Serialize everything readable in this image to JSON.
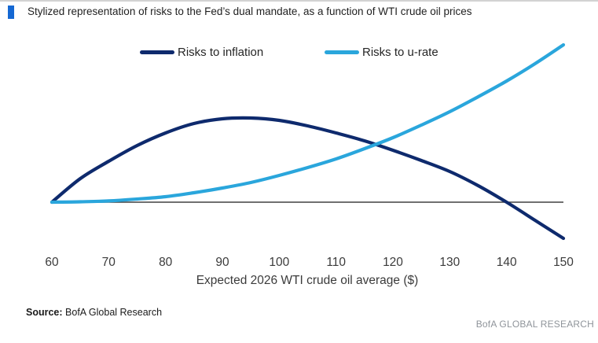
{
  "header": {
    "title": "Stylized representation of risks to the Fed’s dual mandate, as a function of WTI crude oil prices",
    "accent_color": "#1568d3"
  },
  "legend": [
    {
      "label": "Risks to inflation",
      "color": "#0e2a6d"
    },
    {
      "label": "Risks to u-rate",
      "color": "#2aa6dc"
    }
  ],
  "source": {
    "label": "Source:",
    "text": "BofA Global Research"
  },
  "brand": "BofA GLOBAL RESEARCH",
  "chart_data": {
    "type": "line",
    "title": "Stylized representation of risks to the Fed’s dual mandate, as a function of WTI crude oil prices",
    "xlabel": "Expected 2026 WTI crude oil average ($)",
    "ylabel": "",
    "xlim": [
      60,
      150
    ],
    "ylim": [
      -0.6,
      2.1
    ],
    "x_ticks": [
      60,
      70,
      80,
      90,
      100,
      110,
      120,
      130,
      140,
      150
    ],
    "grid": false,
    "zero_line": true,
    "zero_line_color": "#404040",
    "legend_position": "top",
    "x": [
      60,
      65,
      70,
      75,
      80,
      85,
      90,
      95,
      100,
      105,
      110,
      115,
      120,
      125,
      130,
      135,
      140,
      145,
      150
    ],
    "series": [
      {
        "name": "Risks to inflation",
        "color": "#0e2a6d",
        "values": [
          0,
          0.3,
          0.52,
          0.72,
          0.88,
          1.0,
          1.06,
          1.07,
          1.04,
          0.97,
          0.88,
          0.78,
          0.66,
          0.53,
          0.39,
          0.21,
          0.0,
          -0.23,
          -0.46
        ]
      },
      {
        "name": "Risks to u-rate",
        "color": "#2aa6dc",
        "values": [
          0,
          0.005,
          0.016,
          0.04,
          0.07,
          0.12,
          0.18,
          0.25,
          0.34,
          0.44,
          0.55,
          0.68,
          0.82,
          0.98,
          1.15,
          1.34,
          1.54,
          1.76,
          2.0
        ]
      }
    ]
  }
}
